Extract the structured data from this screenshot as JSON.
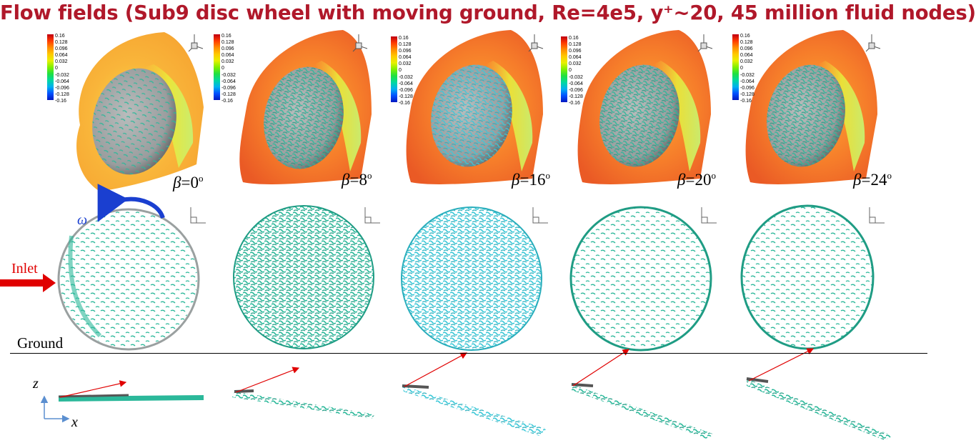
{
  "title": "Flow fields (Sub9 disc wheel with moving ground, Re=4e5, y⁺~20, 45 million fluid nodes)",
  "legend_ticks": [
    "0.16",
    "0.128",
    "0.096",
    "0.064",
    "0.032",
    "0",
    "-0.032",
    "-0.064",
    "-0.096",
    "-0.128",
    "-0.16"
  ],
  "beta_symbol": "β",
  "beta_values": [
    "=0",
    "=8",
    "=16",
    "=20",
    "=24"
  ],
  "degree": "o",
  "labels": {
    "omega": "ω",
    "inlet": "Inlet",
    "ground": "Ground",
    "axis_z": "z",
    "axis_x": "x"
  },
  "colors": {
    "title": "#b0182a",
    "vortex": "#2bb89a",
    "vortex_cyan": "#3cc8d8",
    "arrow_red": "#e00000",
    "omega_blue": "#1a3fd0"
  }
}
